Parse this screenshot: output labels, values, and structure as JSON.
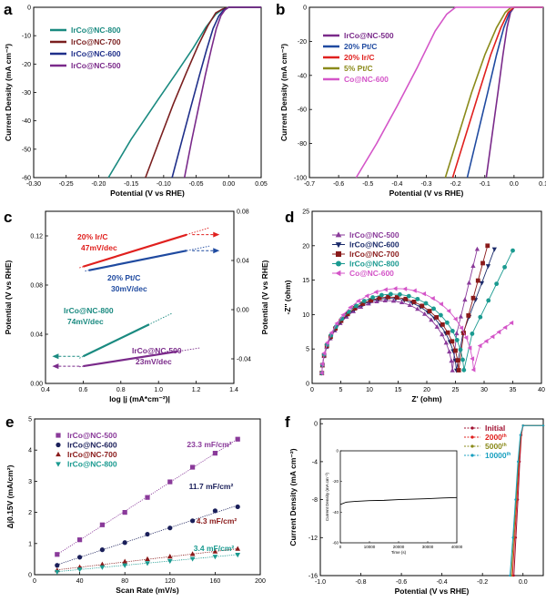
{
  "panels": {
    "a": {
      "letter": "a"
    },
    "b": {
      "letter": "b"
    },
    "c": {
      "letter": "c"
    },
    "d": {
      "letter": "d"
    },
    "e": {
      "letter": "e"
    },
    "f": {
      "letter": "f"
    }
  },
  "chart_data": [
    {
      "id": "a",
      "type": "line",
      "xlabel": "Potential (V vs RHE)",
      "ylabel": "Current Density (mA cm⁻²)",
      "xlim": [
        -0.3,
        0.05
      ],
      "ylim": [
        -60,
        0
      ],
      "xticks": [
        -0.3,
        -0.25,
        -0.2,
        -0.15,
        -0.1,
        -0.05,
        0.0,
        0.05
      ],
      "xtick_labels": [
        "-0.30",
        "-0.25",
        "-0.20",
        "-0.15",
        "-0.10",
        "-0.05",
        "0.00",
        "0.05"
      ],
      "yticks": [
        -60,
        -50,
        -40,
        -30,
        -20,
        -10,
        0
      ],
      "ytick_labels": [
        "-60",
        "-50",
        "-40",
        "-30",
        "-20",
        "-10",
        "0"
      ],
      "legend_position": "top-left",
      "series": [
        {
          "name": "IrCo@NC-800",
          "color": "#1a8a80",
          "x": [
            -0.185,
            -0.15,
            -0.11,
            -0.08,
            -0.055,
            -0.035,
            -0.02,
            -0.01,
            0.0,
            0.05
          ],
          "y": [
            -60,
            -46.5,
            -33,
            -23,
            -14.5,
            -7,
            -2.5,
            -0.8,
            0,
            0
          ]
        },
        {
          "name": "IrCo@NC-700",
          "color": "#7a1f1f",
          "x": [
            -0.128,
            -0.105,
            -0.085,
            -0.065,
            -0.047,
            -0.032,
            -0.02,
            -0.01,
            0.0,
            0.05
          ],
          "y": [
            -60,
            -46,
            -34,
            -23,
            -13.5,
            -6.5,
            -2,
            -0.7,
            0,
            0
          ]
        },
        {
          "name": "IrCo@NC-600",
          "color": "#1f2f8a",
          "x": [
            -0.087,
            -0.072,
            -0.058,
            -0.045,
            -0.034,
            -0.024,
            -0.015,
            -0.008,
            0.0,
            0.05
          ],
          "y": [
            -60,
            -47,
            -35,
            -24,
            -15,
            -7.5,
            -3,
            -1,
            0,
            0
          ]
        },
        {
          "name": "IrCo@NC-500",
          "color": "#7a2a8a",
          "x": [
            -0.068,
            -0.057,
            -0.046,
            -0.036,
            -0.027,
            -0.019,
            -0.012,
            -0.006,
            0.0,
            0.05
          ],
          "y": [
            -60,
            -47,
            -35,
            -24,
            -15,
            -7.5,
            -3,
            -1,
            0,
            0
          ]
        }
      ]
    },
    {
      "id": "b",
      "type": "line",
      "xlabel": "Potential (V vs RHE)",
      "ylabel": "Current Density (mA cm⁻²)",
      "xlim": [
        -0.7,
        0.1
      ],
      "ylim": [
        -100,
        0
      ],
      "xticks": [
        -0.7,
        -0.6,
        -0.5,
        -0.4,
        -0.3,
        -0.2,
        -0.1,
        0.0,
        0.1
      ],
      "xtick_labels": [
        "-0.7",
        "-0.6",
        "-0.5",
        "-0.4",
        "-0.3",
        "-0.2",
        "-0.1",
        "0.0",
        "0.1"
      ],
      "yticks": [
        -100,
        -80,
        -60,
        -40,
        -20,
        0
      ],
      "ytick_labels": [
        "-100",
        "-80",
        "-60",
        "-40",
        "-20",
        "0"
      ],
      "legend_position": "top-left",
      "series": [
        {
          "name": "IrCo@NC-500",
          "color": "#7a2a8a",
          "x": [
            -0.095,
            -0.075,
            -0.055,
            -0.038,
            -0.024,
            -0.012,
            0.0,
            0.1
          ],
          "y": [
            -100,
            -75,
            -50,
            -28,
            -12,
            -3,
            0,
            0
          ]
        },
        {
          "name": "20% Pt/C",
          "color": "#1f4aa0",
          "x": [
            -0.16,
            -0.125,
            -0.09,
            -0.06,
            -0.035,
            -0.015,
            0.0,
            0.1
          ],
          "y": [
            -100,
            -75,
            -50,
            -28,
            -12,
            -3,
            0,
            0
          ]
        },
        {
          "name": "20% Ir/C",
          "color": "#e0201e",
          "x": [
            -0.21,
            -0.165,
            -0.12,
            -0.08,
            -0.045,
            -0.02,
            0.0,
            0.1
          ],
          "y": [
            -100,
            -75,
            -50,
            -28,
            -12,
            -3,
            0,
            0
          ]
        },
        {
          "name": "5% Pt/C",
          "color": "#8a8a1a",
          "x": [
            -0.235,
            -0.19,
            -0.145,
            -0.1,
            -0.06,
            -0.03,
            -0.01,
            0.1
          ],
          "y": [
            -100,
            -75,
            -50,
            -28,
            -12,
            -3,
            0,
            0
          ]
        },
        {
          "name": "Co@NC-600",
          "color": "#d455c8",
          "x": [
            -0.54,
            -0.47,
            -0.4,
            -0.33,
            -0.27,
            -0.23,
            -0.2,
            0.1
          ],
          "y": [
            -100,
            -80,
            -58,
            -35,
            -14,
            -4,
            0,
            0
          ]
        }
      ]
    },
    {
      "id": "c",
      "type": "line",
      "xlabel": "log |j (mA*cm⁻²)|",
      "ylabel": "Potential (V vs RHE)",
      "ylabel_right": "Potential (V vs RHE)",
      "xlim": [
        0.4,
        1.4
      ],
      "ylim_left": [
        0.0,
        0.14
      ],
      "ylim_right": [
        -0.06,
        0.08
      ],
      "xticks": [
        0.4,
        0.6,
        0.8,
        1.0,
        1.2,
        1.4
      ],
      "xtick_labels": [
        "0.4",
        "0.6",
        "0.8",
        "1.0",
        "1.2",
        "1.4"
      ],
      "yticks_left": [
        0.0,
        0.04,
        0.08,
        0.12
      ],
      "ytick_labels_left": [
        "0.00",
        "0.04",
        "0.08",
        "0.12"
      ],
      "yticks_right": [
        -0.04,
        0.0,
        0.04,
        0.08
      ],
      "ytick_labels_right": [
        "-0.04",
        "0.00",
        "0.04",
        "0.08"
      ],
      "series": [
        {
          "name": "20% Ir/C",
          "slope": "47mV/dec",
          "axis": "right",
          "color": "#e0201e",
          "x": [
            0.6,
            1.15
          ],
          "y": [
            0.035,
            0.061
          ]
        },
        {
          "name": "20% Pt/C",
          "slope": "30mV/dec",
          "axis": "right",
          "color": "#1f4aa0",
          "x": [
            0.63,
            1.15
          ],
          "y": [
            0.032,
            0.048
          ]
        },
        {
          "name": "IrCo@NC-800",
          "slope": "74mV/dec",
          "axis": "left",
          "color": "#1a8a80",
          "x": [
            0.6,
            0.95
          ],
          "y": [
            0.022,
            0.048
          ]
        },
        {
          "name": "IrCo@NC-500",
          "slope": "23mV/dec",
          "axis": "left",
          "color": "#7a2a8a",
          "x": [
            0.6,
            1.1
          ],
          "y": [
            0.014,
            0.026
          ]
        }
      ]
    },
    {
      "id": "d",
      "type": "scatter",
      "xlabel": "Z' (ohm)",
      "ylabel": "-Z'' (ohm)",
      "xlim": [
        0,
        40
      ],
      "ylim": [
        0,
        25
      ],
      "xticks": [
        0,
        5,
        10,
        15,
        20,
        25,
        30,
        35,
        40
      ],
      "xtick_labels": [
        "0",
        "5",
        "10",
        "15",
        "20",
        "25",
        "30",
        "35",
        "40"
      ],
      "yticks": [
        0,
        5,
        10,
        15,
        20,
        25
      ],
      "ytick_labels": [
        "0",
        "5",
        "10",
        "15",
        "20",
        "25"
      ],
      "legend_position": "top-left",
      "series": [
        {
          "name": "IrCo@NC-500",
          "color": "#8a3a9a",
          "marker": "triangle",
          "rct": 24.5,
          "tail_x": 28.8,
          "tail_y": 19.5
        },
        {
          "name": "IrCo@NC-600",
          "color": "#1a2a6a",
          "marker": "triangle-down",
          "rct": 25.2,
          "tail_x": 31.8,
          "tail_y": 19.5
        },
        {
          "name": "IrCo@NC-700",
          "color": "#8a1a1a",
          "marker": "square",
          "rct": 25.6,
          "tail_x": 30.6,
          "tail_y": 20
        },
        {
          "name": "IrCo@NC-800",
          "color": "#1a9a90",
          "marker": "circle",
          "rct": 26.5,
          "tail_x": 35,
          "tail_y": 19.3
        },
        {
          "name": "Co@NC-600",
          "color": "#d455c8",
          "marker": "triangle-left",
          "rct": 28.2,
          "tail_x": 34.8,
          "tail_y": 8.8
        }
      ]
    },
    {
      "id": "e",
      "type": "scatter",
      "xlabel": "Scan Rate (mV/s)",
      "ylabel": "Δj0.15V (mA/cm²)",
      "xlim": [
        0,
        200
      ],
      "ylim": [
        0,
        5
      ],
      "xticks": [
        0,
        40,
        80,
        120,
        160,
        200
      ],
      "xtick_labels": [
        "0",
        "40",
        "80",
        "120",
        "160",
        "200"
      ],
      "yticks": [
        0,
        1,
        2,
        3,
        4,
        5
      ],
      "ytick_labels": [
        "0",
        "1",
        "2",
        "3",
        "4",
        "5"
      ],
      "legend_position": "top-left",
      "x": [
        20,
        40,
        60,
        80,
        100,
        120,
        140,
        160,
        180
      ],
      "series": [
        {
          "name": "IrCo@NC-500",
          "color": "#8a3a9a",
          "marker": "square",
          "capacitance": "23.3 mF/cm²",
          "values": [
            0.65,
            1.12,
            1.6,
            2.0,
            2.48,
            2.98,
            3.45,
            3.9,
            4.35
          ]
        },
        {
          "name": "IrCo@NC-600",
          "color": "#1a1f5a",
          "marker": "circle",
          "capacitance": "11.7 mF/cm²",
          "values": [
            0.3,
            0.56,
            0.8,
            1.03,
            1.3,
            1.5,
            1.73,
            2.05,
            2.18
          ]
        },
        {
          "name": "IrCo@NC-700",
          "color": "#8a1a1a",
          "marker": "triangle",
          "capacitance": "4.3 mF/cm²",
          "values": [
            0.14,
            0.24,
            0.33,
            0.42,
            0.5,
            0.58,
            0.66,
            0.74,
            0.83
          ]
        },
        {
          "name": "IrCo@NC-800",
          "color": "#1a9a90",
          "marker": "triangle-down",
          "capacitance": "3.4 mF/cm²",
          "values": [
            0.09,
            0.17,
            0.24,
            0.3,
            0.37,
            0.44,
            0.51,
            0.58,
            0.64
          ]
        }
      ]
    },
    {
      "id": "f",
      "type": "line",
      "xlabel": "Potential (V vs RHE)",
      "ylabel": "Current Density (mA cm⁻²)",
      "xlim": [
        -1.0,
        0.1
      ],
      "ylim": [
        -16,
        0.5
      ],
      "xticks": [
        -1.0,
        -0.8,
        -0.6,
        -0.4,
        -0.2,
        0.0
      ],
      "xtick_labels": [
        "-1.0",
        "-0.8",
        "-0.6",
        "-0.4",
        "-0.2",
        "0.0"
      ],
      "yticks": [
        -16,
        -12,
        -8,
        -4,
        0
      ],
      "ytick_labels": [
        "-16",
        "-12",
        "-8",
        "-4",
        "0"
      ],
      "legend_position": "top-right",
      "series": [
        {
          "name": "Initial",
          "superscript": "",
          "color": "#a01030",
          "x": [
            -0.045,
            -0.035,
            -0.025,
            -0.016,
            -0.008,
            0.0,
            0.1
          ],
          "y": [
            -16,
            -12,
            -8,
            -4,
            -1.2,
            -0.2,
            -0.2
          ]
        },
        {
          "name": "2000",
          "superscript": "th",
          "color": "#e0201e",
          "x": [
            -0.052,
            -0.041,
            -0.03,
            -0.02,
            -0.01,
            0.0,
            0.1
          ],
          "y": [
            -16,
            -12,
            -8,
            -4,
            -1.2,
            -0.2,
            -0.2
          ]
        },
        {
          "name": "5000",
          "superscript": "th",
          "color": "#8a8a1a",
          "x": [
            -0.058,
            -0.046,
            -0.034,
            -0.023,
            -0.012,
            0.0,
            0.1
          ],
          "y": [
            -16,
            -12,
            -8,
            -4,
            -1.2,
            -0.2,
            -0.2
          ]
        },
        {
          "name": "10000",
          "superscript": "th",
          "color": "#1aa0c0",
          "x": [
            -0.064,
            -0.05,
            -0.037,
            -0.025,
            -0.013,
            0.0,
            0.1
          ],
          "y": [
            -16,
            -12,
            -8,
            -4,
            -1.2,
            -0.2,
            -0.2
          ]
        }
      ],
      "inset": {
        "type": "line",
        "xlabel": "Time (s)",
        "ylabel": "Current Density (mA cm⁻²)",
        "xlim": [
          0,
          40000
        ],
        "ylim": [
          -60,
          0
        ],
        "xticks": [
          0,
          10000,
          20000,
          30000,
          40000
        ],
        "xtick_labels": [
          "0",
          "10000",
          "20000",
          "30000",
          "40000"
        ],
        "yticks": [
          -60,
          -40,
          -20,
          0
        ],
        "ytick_labels": [
          "-60",
          "-40",
          "-20",
          "0"
        ],
        "x": [
          0,
          2000,
          5000,
          10000,
          15000,
          20000,
          25000,
          30000,
          35000,
          40000
        ],
        "y": [
          -35,
          -33.5,
          -33,
          -32.5,
          -32.3,
          -31.8,
          -31.5,
          -31.2,
          -30.8,
          -30.5
        ]
      }
    }
  ]
}
